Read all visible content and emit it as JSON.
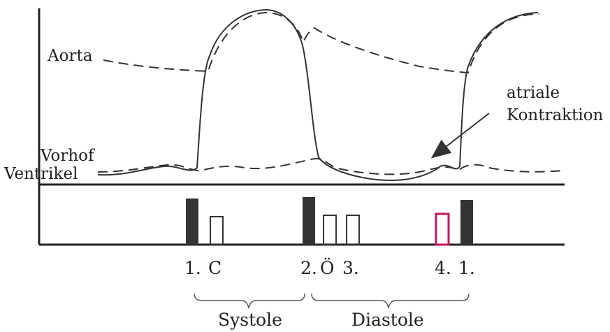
{
  "labels": {
    "aorta": "Aorta",
    "vorhof": "Vorhof",
    "ventrikel": "Ventrikel",
    "atrial_line1": "atriale",
    "atrial_line2": "Kontraktion"
  },
  "sounds": {
    "s1": "1.",
    "c": "C",
    "s2": "2.",
    "o": "Ö",
    "s3": "3.",
    "s4": "4.",
    "s1b": "1."
  },
  "phases": {
    "systole": "Systole",
    "diastole": "Diastole"
  },
  "colors": {
    "line": "#333333",
    "bar": "#333333",
    "fourth_sound": "#c2185b"
  }
}
